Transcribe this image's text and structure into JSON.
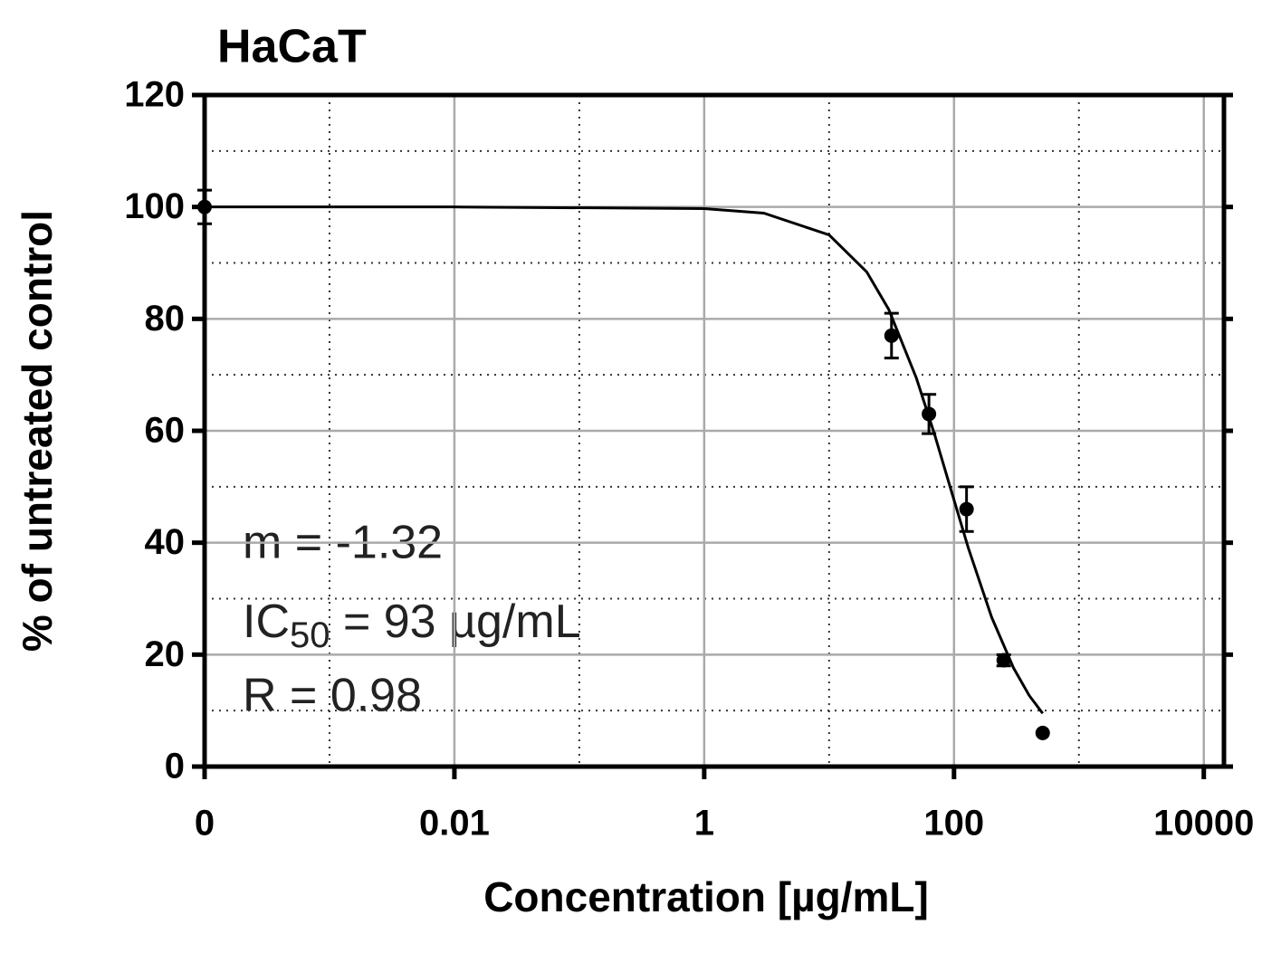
{
  "chart_data": {
    "type": "dose-response",
    "title": "HaCaT",
    "x_label": "Concentration [µg/mL]",
    "y_label": "% of untreated control",
    "log_x": true,
    "xlim": [
      0.0001,
      14500
    ],
    "ylim": [
      0,
      120
    ],
    "xticks": [
      {
        "value": 0.0001,
        "label": "0"
      },
      0.01,
      1,
      100,
      10000
    ],
    "xminor": [
      0.001,
      0.1,
      10,
      1000
    ],
    "yticks": [
      0,
      20,
      40,
      60,
      80,
      100,
      120
    ],
    "yminor": [
      10,
      30,
      50,
      70,
      90,
      110
    ],
    "grid": true,
    "color": "#000000",
    "points": {
      "x": [
        0.0001,
        31.6,
        63,
        126,
        250,
        513
      ],
      "values": [
        100,
        77,
        63,
        46,
        19,
        6
      ],
      "errors": [
        3,
        4,
        3.5,
        4,
        1,
        null
      ]
    },
    "curve": {
      "x": [
        0.0001,
        0.01,
        1,
        3,
        10,
        20,
        30,
        50,
        70,
        93,
        130,
        200,
        300,
        400,
        513
      ],
      "values": [
        100,
        100,
        99.7,
        98.9,
        95.0,
        88.4,
        81.7,
        69.4,
        59.3,
        50,
        39.1,
        26.7,
        17.6,
        12.7,
        9.5
      ]
    },
    "annotations": {
      "slope": "m = -1.32",
      "ic50_main": "IC",
      "ic50_sub": "50",
      "ic50_rest": " = 93 µg/mL",
      "r": "R = 0.98"
    }
  }
}
